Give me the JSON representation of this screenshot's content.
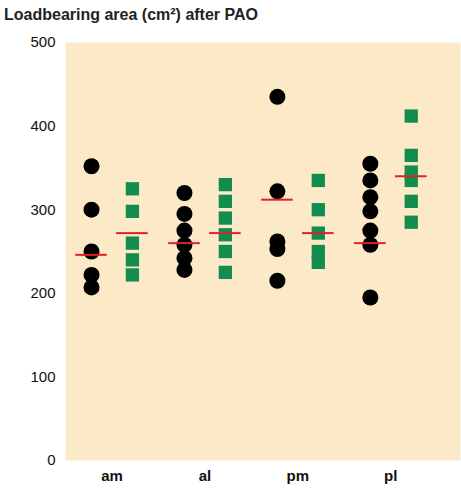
{
  "chart_data": {
    "type": "scatter",
    "title": "Loadbearing area (cm²) after PAO",
    "categories": [
      "am",
      "al",
      "pm",
      "pl"
    ],
    "ylim": [
      0,
      500
    ],
    "yticks": [
      0,
      100,
      200,
      300,
      400,
      500
    ],
    "series": [
      {
        "type": "scatter",
        "marker": "circle",
        "color": "#000000",
        "values": [
          [
            352,
            300,
            250,
            222,
            207
          ],
          [
            320,
            295,
            275,
            258,
            242,
            228
          ],
          [
            435,
            322,
            262,
            253,
            215
          ],
          [
            355,
            335,
            315,
            298,
            275,
            258,
            195
          ]
        ]
      },
      {
        "type": "scatter",
        "marker": "square",
        "color": "#138d4f",
        "values": [
          [
            325,
            298,
            260,
            240,
            222
          ],
          [
            330,
            310,
            290,
            270,
            250,
            225
          ],
          [
            335,
            300,
            272,
            250,
            237
          ],
          [
            412,
            365,
            345,
            335,
            310,
            285
          ]
        ]
      },
      {
        "type": "rule",
        "color": "#e3202a",
        "values": [
          246,
          260,
          312,
          260
        ]
      },
      {
        "type": "rule",
        "color": "#e3202a",
        "values": [
          272,
          272,
          272,
          340
        ]
      }
    ]
  }
}
